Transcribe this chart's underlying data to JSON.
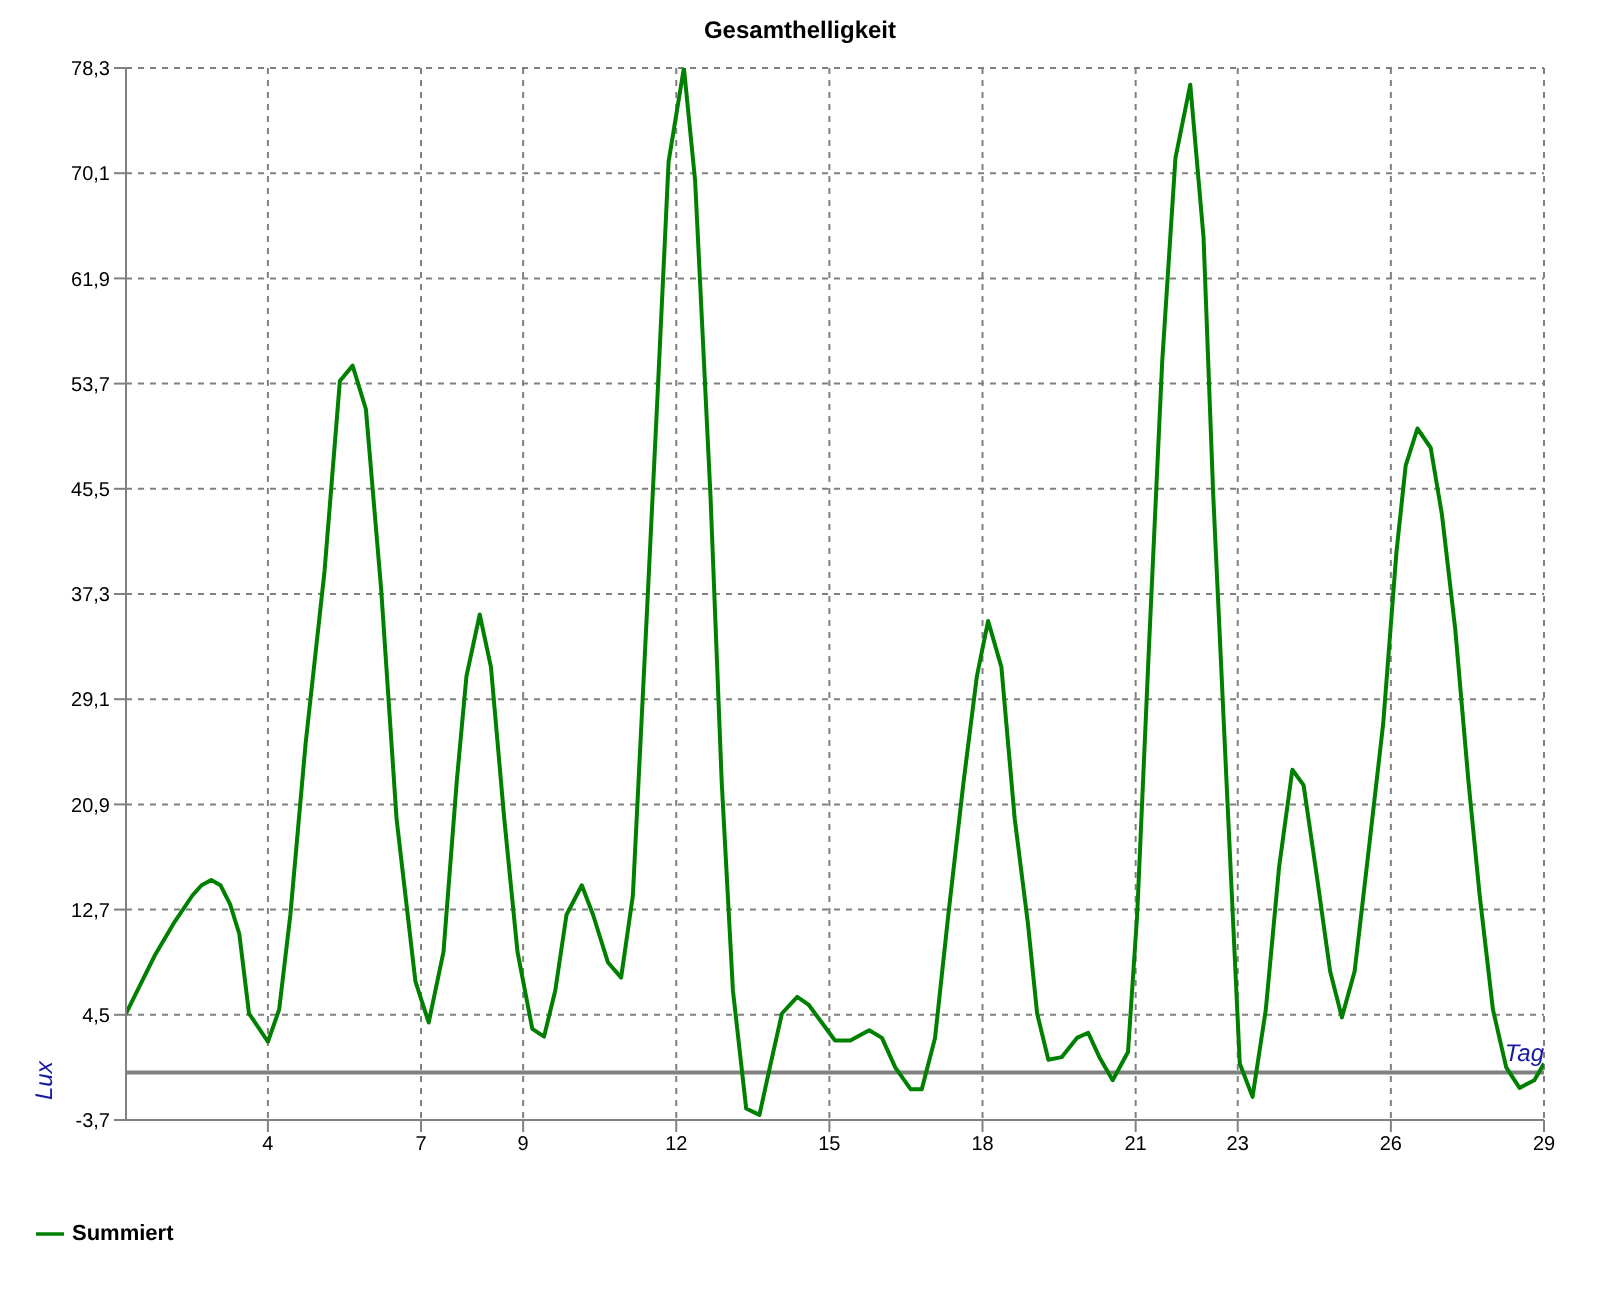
{
  "chart_data": {
    "type": "line",
    "title": "Gesamthelligkeit",
    "xlabel": "Tag",
    "ylabel": "Lux",
    "x": [
      1.22,
      1.78,
      2.15,
      2.52,
      2.7,
      2.89,
      3.07,
      3.26,
      3.44,
      3.63,
      4.0,
      4.22,
      4.44,
      4.74,
      5.11,
      5.41,
      5.66,
      5.92,
      6.22,
      6.52,
      6.89,
      7.15,
      7.44,
      7.7,
      7.89,
      8.15,
      8.37,
      8.63,
      8.89,
      9.18,
      9.41,
      9.63,
      9.85,
      10.15,
      10.37,
      10.66,
      10.92,
      11.15,
      11.41,
      11.63,
      11.85,
      12.15,
      12.37,
      12.67,
      12.89,
      13.11,
      13.37,
      13.63,
      13.85,
      14.07,
      14.37,
      14.59,
      14.85,
      15.11,
      15.41,
      15.78,
      16.03,
      16.29,
      16.59,
      16.81,
      17.07,
      17.33,
      17.63,
      17.89,
      18.11,
      18.37,
      18.63,
      18.89,
      19.07,
      19.29,
      19.55,
      19.85,
      20.07,
      20.29,
      20.55,
      20.85,
      21.03,
      21.26,
      21.52,
      21.78,
      22.07,
      22.33,
      22.52,
      22.78,
      23.04,
      23.29,
      23.55,
      23.81,
      24.07,
      24.29,
      24.55,
      24.81,
      25.04,
      25.29,
      25.55,
      25.85,
      26.11,
      26.29,
      26.52,
      26.78,
      27.0,
      27.26,
      27.52,
      27.74,
      28.0,
      28.26,
      28.52,
      28.81,
      29.0
    ],
    "series": [
      {
        "name": "Summiert",
        "color": "#008000",
        "values": [
          4.6,
          9.1,
          11.6,
          13.8,
          14.6,
          15.0,
          14.6,
          13.1,
          10.8,
          4.6,
          2.4,
          4.9,
          12.3,
          25.7,
          39.1,
          53.9,
          55.1,
          51.7,
          37.6,
          19.8,
          7.1,
          3.9,
          9.4,
          22.7,
          30.9,
          35.7,
          31.6,
          19.8,
          9.4,
          3.4,
          2.8,
          6.4,
          12.3,
          14.6,
          12.3,
          8.6,
          7.4,
          13.8,
          34.6,
          52.5,
          71.0,
          78.3,
          69.5,
          45.0,
          22.7,
          6.4,
          -2.8,
          -3.3,
          0.7,
          4.6,
          5.9,
          5.3,
          3.9,
          2.5,
          2.5,
          3.3,
          2.7,
          0.4,
          -1.3,
          -1.3,
          2.7,
          12.3,
          22.7,
          30.9,
          35.2,
          31.6,
          19.8,
          11.6,
          4.6,
          1.0,
          1.2,
          2.7,
          3.1,
          1.2,
          -0.6,
          1.6,
          12.3,
          33.1,
          55.4,
          71.3,
          77.0,
          65.1,
          45.0,
          22.7,
          0.7,
          -1.9,
          4.9,
          16.0,
          23.6,
          22.4,
          15.3,
          7.9,
          4.3,
          7.9,
          16.8,
          27.2,
          40.6,
          47.3,
          50.2,
          48.7,
          43.5,
          34.6,
          22.7,
          13.8,
          4.9,
          0.4,
          -1.2,
          -0.6,
          0.7
        ]
      }
    ],
    "xlim": [
      1.22,
      29
    ],
    "xticks": [
      4,
      7,
      9,
      12,
      15,
      18,
      21,
      23,
      26,
      29
    ],
    "ylim": [
      -3.7,
      78.3
    ],
    "yticks": [
      {
        "value": -3.7,
        "label": "-3,7"
      },
      {
        "value": 4.5,
        "label": "4,5"
      },
      {
        "value": 12.7,
        "label": "12,7"
      },
      {
        "value": 20.9,
        "label": "20,9"
      },
      {
        "value": 29.1,
        "label": "29,1"
      },
      {
        "value": 37.3,
        "label": "37,3"
      },
      {
        "value": 45.5,
        "label": "45,5"
      },
      {
        "value": 53.7,
        "label": "53,7"
      },
      {
        "value": 61.9,
        "label": "61,9"
      },
      {
        "value": 70.1,
        "label": "70,1"
      },
      {
        "value": 78.3,
        "label": "78,3"
      }
    ],
    "ref_lines": [
      {
        "axis": "y",
        "value": 0,
        "color": "#808080"
      }
    ],
    "grid": true,
    "legend": "bottom left"
  }
}
